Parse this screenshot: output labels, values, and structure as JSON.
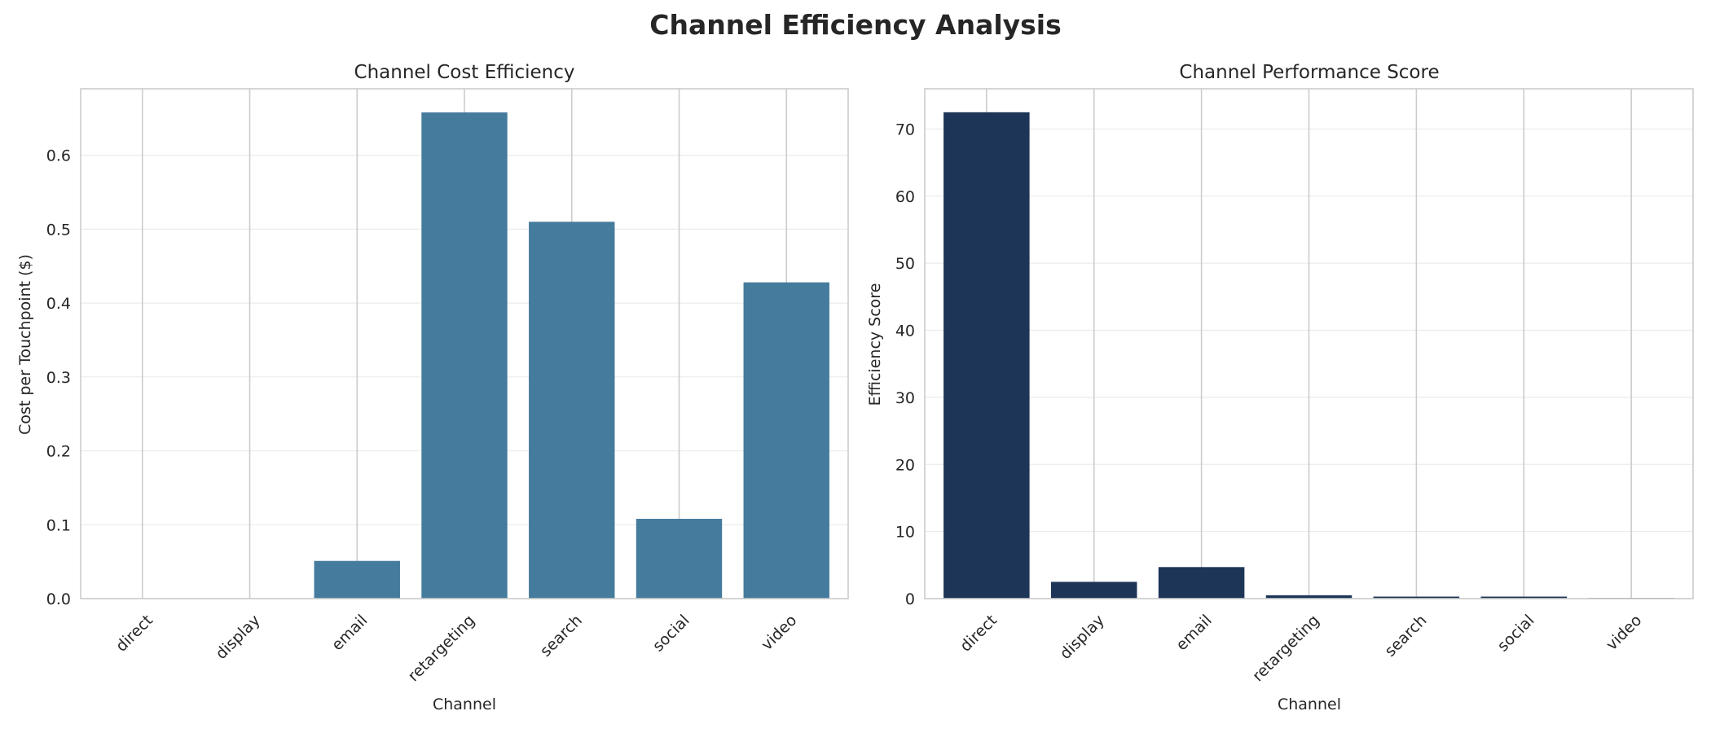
{
  "suptitle": "Channel Efficiency Analysis",
  "chart_data": [
    {
      "type": "bar",
      "title": "Channel Cost Efficiency",
      "xlabel": "Channel",
      "ylabel": "Cost per Touchpoint ($)",
      "categories": [
        "direct",
        "display",
        "email",
        "retargeting",
        "search",
        "social",
        "video"
      ],
      "values": [
        0.0,
        0.0,
        0.051,
        0.658,
        0.51,
        0.108,
        0.428
      ],
      "ylim": [
        0,
        0.69
      ],
      "yticks": [
        0.0,
        0.1,
        0.2,
        0.3,
        0.4,
        0.5,
        0.6
      ],
      "ytick_labels": [
        "0.0",
        "0.1",
        "0.2",
        "0.3",
        "0.4",
        "0.5",
        "0.6"
      ],
      "color": "#457b9d",
      "grid": true,
      "legend": "none"
    },
    {
      "type": "bar",
      "title": "Channel Performance Score",
      "xlabel": "Channel",
      "ylabel": "Efficiency Score",
      "categories": [
        "direct",
        "display",
        "email",
        "retargeting",
        "search",
        "social",
        "video"
      ],
      "values": [
        72.5,
        2.5,
        4.7,
        0.5,
        0.3,
        0.3,
        0.1
      ],
      "ylim": [
        0,
        76
      ],
      "yticks": [
        0,
        10,
        20,
        30,
        40,
        50,
        60,
        70
      ],
      "ytick_labels": [
        "0",
        "10",
        "20",
        "30",
        "40",
        "50",
        "60",
        "70"
      ],
      "color": "#1d3557",
      "grid": true,
      "legend": "none"
    }
  ]
}
